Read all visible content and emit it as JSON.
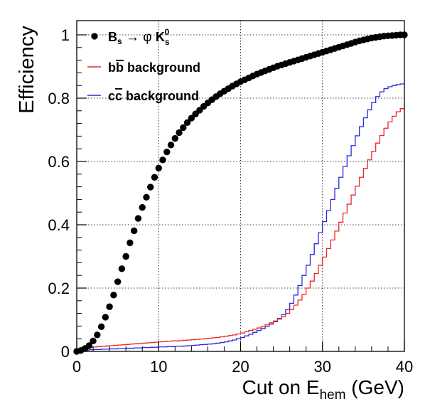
{
  "chart_data": {
    "type": "scatter",
    "title": "",
    "xlabel": {
      "main": "Cut on  E",
      "sub": "hem",
      "tail": " (GeV)"
    },
    "ylabel": "Efficiency",
    "xlim": [
      0,
      40
    ],
    "ylim": [
      0,
      1.0
    ],
    "xticks": [
      0,
      10,
      20,
      30,
      40
    ],
    "xtick_labels": [
      "0",
      "10",
      "20",
      "30",
      "40"
    ],
    "yticks": [
      0,
      0.2,
      0.4,
      0.6,
      0.8,
      1.0
    ],
    "ytick_labels": [
      "0",
      "0.2",
      "0.4",
      "0.6",
      "0.8",
      "1"
    ],
    "grid": true,
    "legend_position": "top-left",
    "legend": [
      {
        "id": "signal",
        "text": "B_s → φ K_s^0",
        "color": "#000000",
        "marker": "circle"
      },
      {
        "id": "bb",
        "text": "bb̄ background",
        "color": "#e8262a",
        "marker": "line"
      },
      {
        "id": "cc",
        "text": "cc̄ background",
        "color": "#2a2ad8",
        "marker": "line"
      }
    ],
    "series": [
      {
        "id": "signal",
        "name": "B_s → φ K_s^0",
        "kind": "points",
        "color": "#000000",
        "x": [
          0.0,
          0.5,
          1.0,
          1.5,
          2.0,
          2.5,
          3.0,
          3.5,
          4.0,
          4.5,
          5.0,
          5.5,
          6.0,
          6.5,
          7.0,
          7.5,
          8.0,
          8.5,
          9.0,
          9.5,
          10.0,
          10.5,
          11.0,
          11.5,
          12.0,
          12.5,
          13.0,
          13.5,
          14.0,
          14.5,
          15.0,
          15.5,
          16.0,
          16.5,
          17.0,
          17.5,
          18.0,
          18.5,
          19.0,
          19.5,
          20.0,
          20.5,
          21.0,
          21.5,
          22.0,
          22.5,
          23.0,
          23.5,
          24.0,
          24.5,
          25.0,
          25.5,
          26.0,
          26.5,
          27.0,
          27.5,
          28.0,
          28.5,
          29.0,
          29.5,
          30.0,
          30.5,
          31.0,
          31.5,
          32.0,
          32.5,
          33.0,
          33.5,
          34.0,
          34.5,
          35.0,
          35.5,
          36.0,
          36.5,
          37.0,
          37.5,
          38.0,
          38.5,
          39.0,
          39.5,
          40.0
        ],
        "y": [
          0.0,
          0.003,
          0.009,
          0.018,
          0.033,
          0.052,
          0.078,
          0.108,
          0.141,
          0.178,
          0.22,
          0.261,
          0.3,
          0.343,
          0.381,
          0.42,
          0.455,
          0.487,
          0.519,
          0.55,
          0.579,
          0.605,
          0.63,
          0.652,
          0.673,
          0.691,
          0.707,
          0.723,
          0.737,
          0.75,
          0.762,
          0.774,
          0.785,
          0.795,
          0.805,
          0.814,
          0.822,
          0.83,
          0.838,
          0.845,
          0.852,
          0.858,
          0.864,
          0.87,
          0.876,
          0.881,
          0.886,
          0.891,
          0.896,
          0.901,
          0.905,
          0.909,
          0.913,
          0.917,
          0.921,
          0.925,
          0.929,
          0.933,
          0.937,
          0.941,
          0.945,
          0.949,
          0.953,
          0.957,
          0.961,
          0.965,
          0.969,
          0.973,
          0.977,
          0.981,
          0.984,
          0.987,
          0.99,
          0.992,
          0.994,
          0.996,
          0.997,
          0.998,
          0.999,
          1.0,
          1.0
        ]
      },
      {
        "id": "bb",
        "name": "bb̄ background",
        "kind": "step",
        "color": "#e8262a",
        "x": [
          0,
          0.5,
          1,
          1.5,
          2,
          2.5,
          3,
          3.5,
          4,
          4.5,
          5,
          5.5,
          6,
          6.5,
          7,
          7.5,
          8,
          8.5,
          9,
          9.5,
          10,
          10.5,
          11,
          11.5,
          12,
          12.5,
          13,
          13.5,
          14,
          14.5,
          15,
          15.5,
          16,
          16.5,
          17,
          17.5,
          18,
          18.5,
          19,
          19.5,
          20,
          20.5,
          21,
          21.5,
          22,
          22.5,
          23,
          23.5,
          24,
          24.5,
          25,
          25.5,
          26,
          26.5,
          27,
          27.5,
          28,
          28.5,
          29,
          29.5,
          30,
          30.5,
          31,
          31.5,
          32,
          32.5,
          33,
          33.5,
          34,
          34.5,
          35,
          35.5,
          36,
          36.5,
          37,
          37.5,
          38,
          38.5,
          39,
          39.5,
          40
        ],
        "y": [
          0,
          0.004,
          0.008,
          0.011,
          0.013,
          0.014,
          0.015,
          0.016,
          0.017,
          0.018,
          0.019,
          0.02,
          0.021,
          0.022,
          0.023,
          0.024,
          0.025,
          0.026,
          0.027,
          0.028,
          0.029,
          0.03,
          0.031,
          0.032,
          0.033,
          0.033,
          0.034,
          0.035,
          0.036,
          0.037,
          0.038,
          0.039,
          0.04,
          0.041,
          0.043,
          0.044,
          0.046,
          0.048,
          0.05,
          0.052,
          0.055,
          0.058,
          0.062,
          0.066,
          0.07,
          0.074,
          0.079,
          0.084,
          0.09,
          0.096,
          0.102,
          0.11,
          0.12,
          0.132,
          0.146,
          0.162,
          0.18,
          0.2,
          0.222,
          0.246,
          0.272,
          0.298,
          0.325,
          0.352,
          0.38,
          0.408,
          0.437,
          0.465,
          0.494,
          0.522,
          0.55,
          0.578,
          0.605,
          0.632,
          0.658,
          0.682,
          0.705,
          0.725,
          0.743,
          0.757,
          0.767
        ]
      },
      {
        "id": "cc",
        "name": "cc̄ background",
        "kind": "step",
        "color": "#2a2ad8",
        "x": [
          0,
          0.5,
          1,
          1.5,
          2,
          2.5,
          3,
          3.5,
          4,
          4.5,
          5,
          5.5,
          6,
          6.5,
          7,
          7.5,
          8,
          8.5,
          9,
          9.5,
          10,
          10.5,
          11,
          11.5,
          12,
          12.5,
          13,
          13.5,
          14,
          14.5,
          15,
          15.5,
          16,
          16.5,
          17,
          17.5,
          18,
          18.5,
          19,
          19.5,
          20,
          20.5,
          21,
          21.5,
          22,
          22.5,
          23,
          23.5,
          24,
          24.5,
          25,
          25.5,
          26,
          26.5,
          27,
          27.5,
          28,
          28.5,
          29,
          29.5,
          30,
          30.5,
          31,
          31.5,
          32,
          32.5,
          33,
          33.5,
          34,
          34.5,
          35,
          35.5,
          36,
          36.5,
          37,
          37.5,
          38,
          38.5,
          39,
          39.5,
          40
        ],
        "y": [
          0,
          0.002,
          0.003,
          0.004,
          0.005,
          0.006,
          0.006,
          0.007,
          0.007,
          0.008,
          0.008,
          0.009,
          0.009,
          0.01,
          0.01,
          0.011,
          0.011,
          0.012,
          0.012,
          0.013,
          0.013,
          0.014,
          0.014,
          0.015,
          0.015,
          0.016,
          0.016,
          0.017,
          0.018,
          0.019,
          0.02,
          0.021,
          0.022,
          0.023,
          0.024,
          0.026,
          0.028,
          0.03,
          0.033,
          0.036,
          0.04,
          0.044,
          0.049,
          0.054,
          0.06,
          0.066,
          0.072,
          0.079,
          0.086,
          0.094,
          0.104,
          0.116,
          0.132,
          0.152,
          0.178,
          0.208,
          0.24,
          0.272,
          0.306,
          0.34,
          0.375,
          0.41,
          0.445,
          0.48,
          0.515,
          0.55,
          0.584,
          0.618,
          0.65,
          0.681,
          0.71,
          0.738,
          0.763,
          0.786,
          0.805,
          0.82,
          0.83,
          0.836,
          0.84,
          0.843,
          0.845
        ]
      }
    ]
  }
}
